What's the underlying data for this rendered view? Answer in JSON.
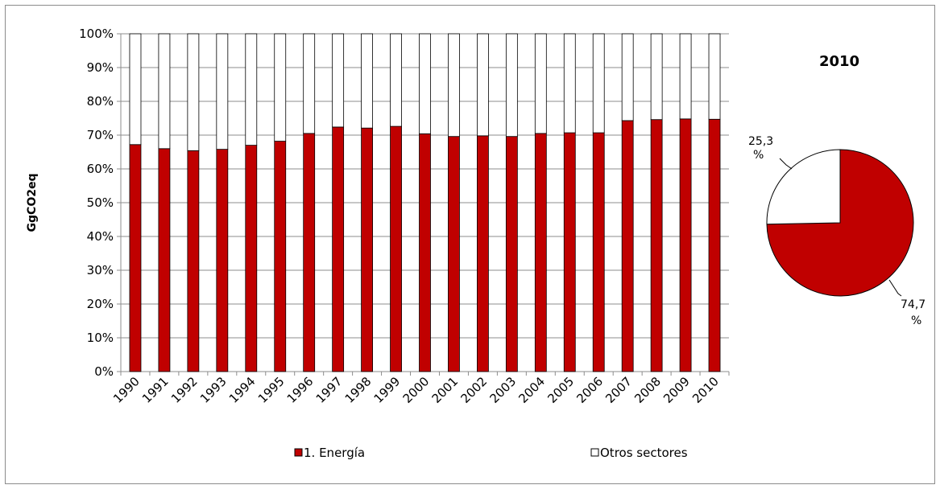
{
  "chart_data": [
    {
      "type": "bar",
      "stacked": true,
      "percent": true,
      "ylabel": "GgCO2eq",
      "xlabel": "",
      "ylim": [
        0,
        100
      ],
      "yticks": [
        "0%",
        "10%",
        "20%",
        "30%",
        "40%",
        "50%",
        "60%",
        "70%",
        "80%",
        "90%",
        "100%"
      ],
      "grid": true,
      "legend_position": "bottom",
      "categories": [
        "1990",
        "1991",
        "1992",
        "1993",
        "1994",
        "1995",
        "1996",
        "1997",
        "1998",
        "1999",
        "2000",
        "2001",
        "2002",
        "2003",
        "2004",
        "2005",
        "2006",
        "2007",
        "2008",
        "2009",
        "2010"
      ],
      "series": [
        {
          "name": "1. Energía",
          "color": "#c00000",
          "values": [
            67.2,
            66.0,
            65.4,
            65.8,
            67.0,
            68.2,
            70.5,
            72.4,
            72.1,
            72.6,
            70.4,
            69.6,
            69.8,
            69.6,
            70.5,
            70.7,
            70.7,
            74.3,
            74.6,
            74.8,
            74.7
          ]
        },
        {
          "name": "Otros sectores",
          "color": "#ffffff",
          "values": [
            32.8,
            34.0,
            34.6,
            34.2,
            33.0,
            31.8,
            29.5,
            27.6,
            27.9,
            27.4,
            29.6,
            30.4,
            30.2,
            30.4,
            29.5,
            29.3,
            29.3,
            25.7,
            25.4,
            25.2,
            25.3
          ]
        }
      ]
    },
    {
      "type": "pie",
      "title": "2010",
      "slices": [
        {
          "name": "1. Energía",
          "value": 74.7,
          "label_top": "74,7",
          "label_bottom": "%",
          "color": "#c00000"
        },
        {
          "name": "Otros sectores",
          "value": 25.3,
          "label_top": "25,3",
          "label_bottom": "%",
          "color": "#ffffff"
        }
      ]
    }
  ]
}
